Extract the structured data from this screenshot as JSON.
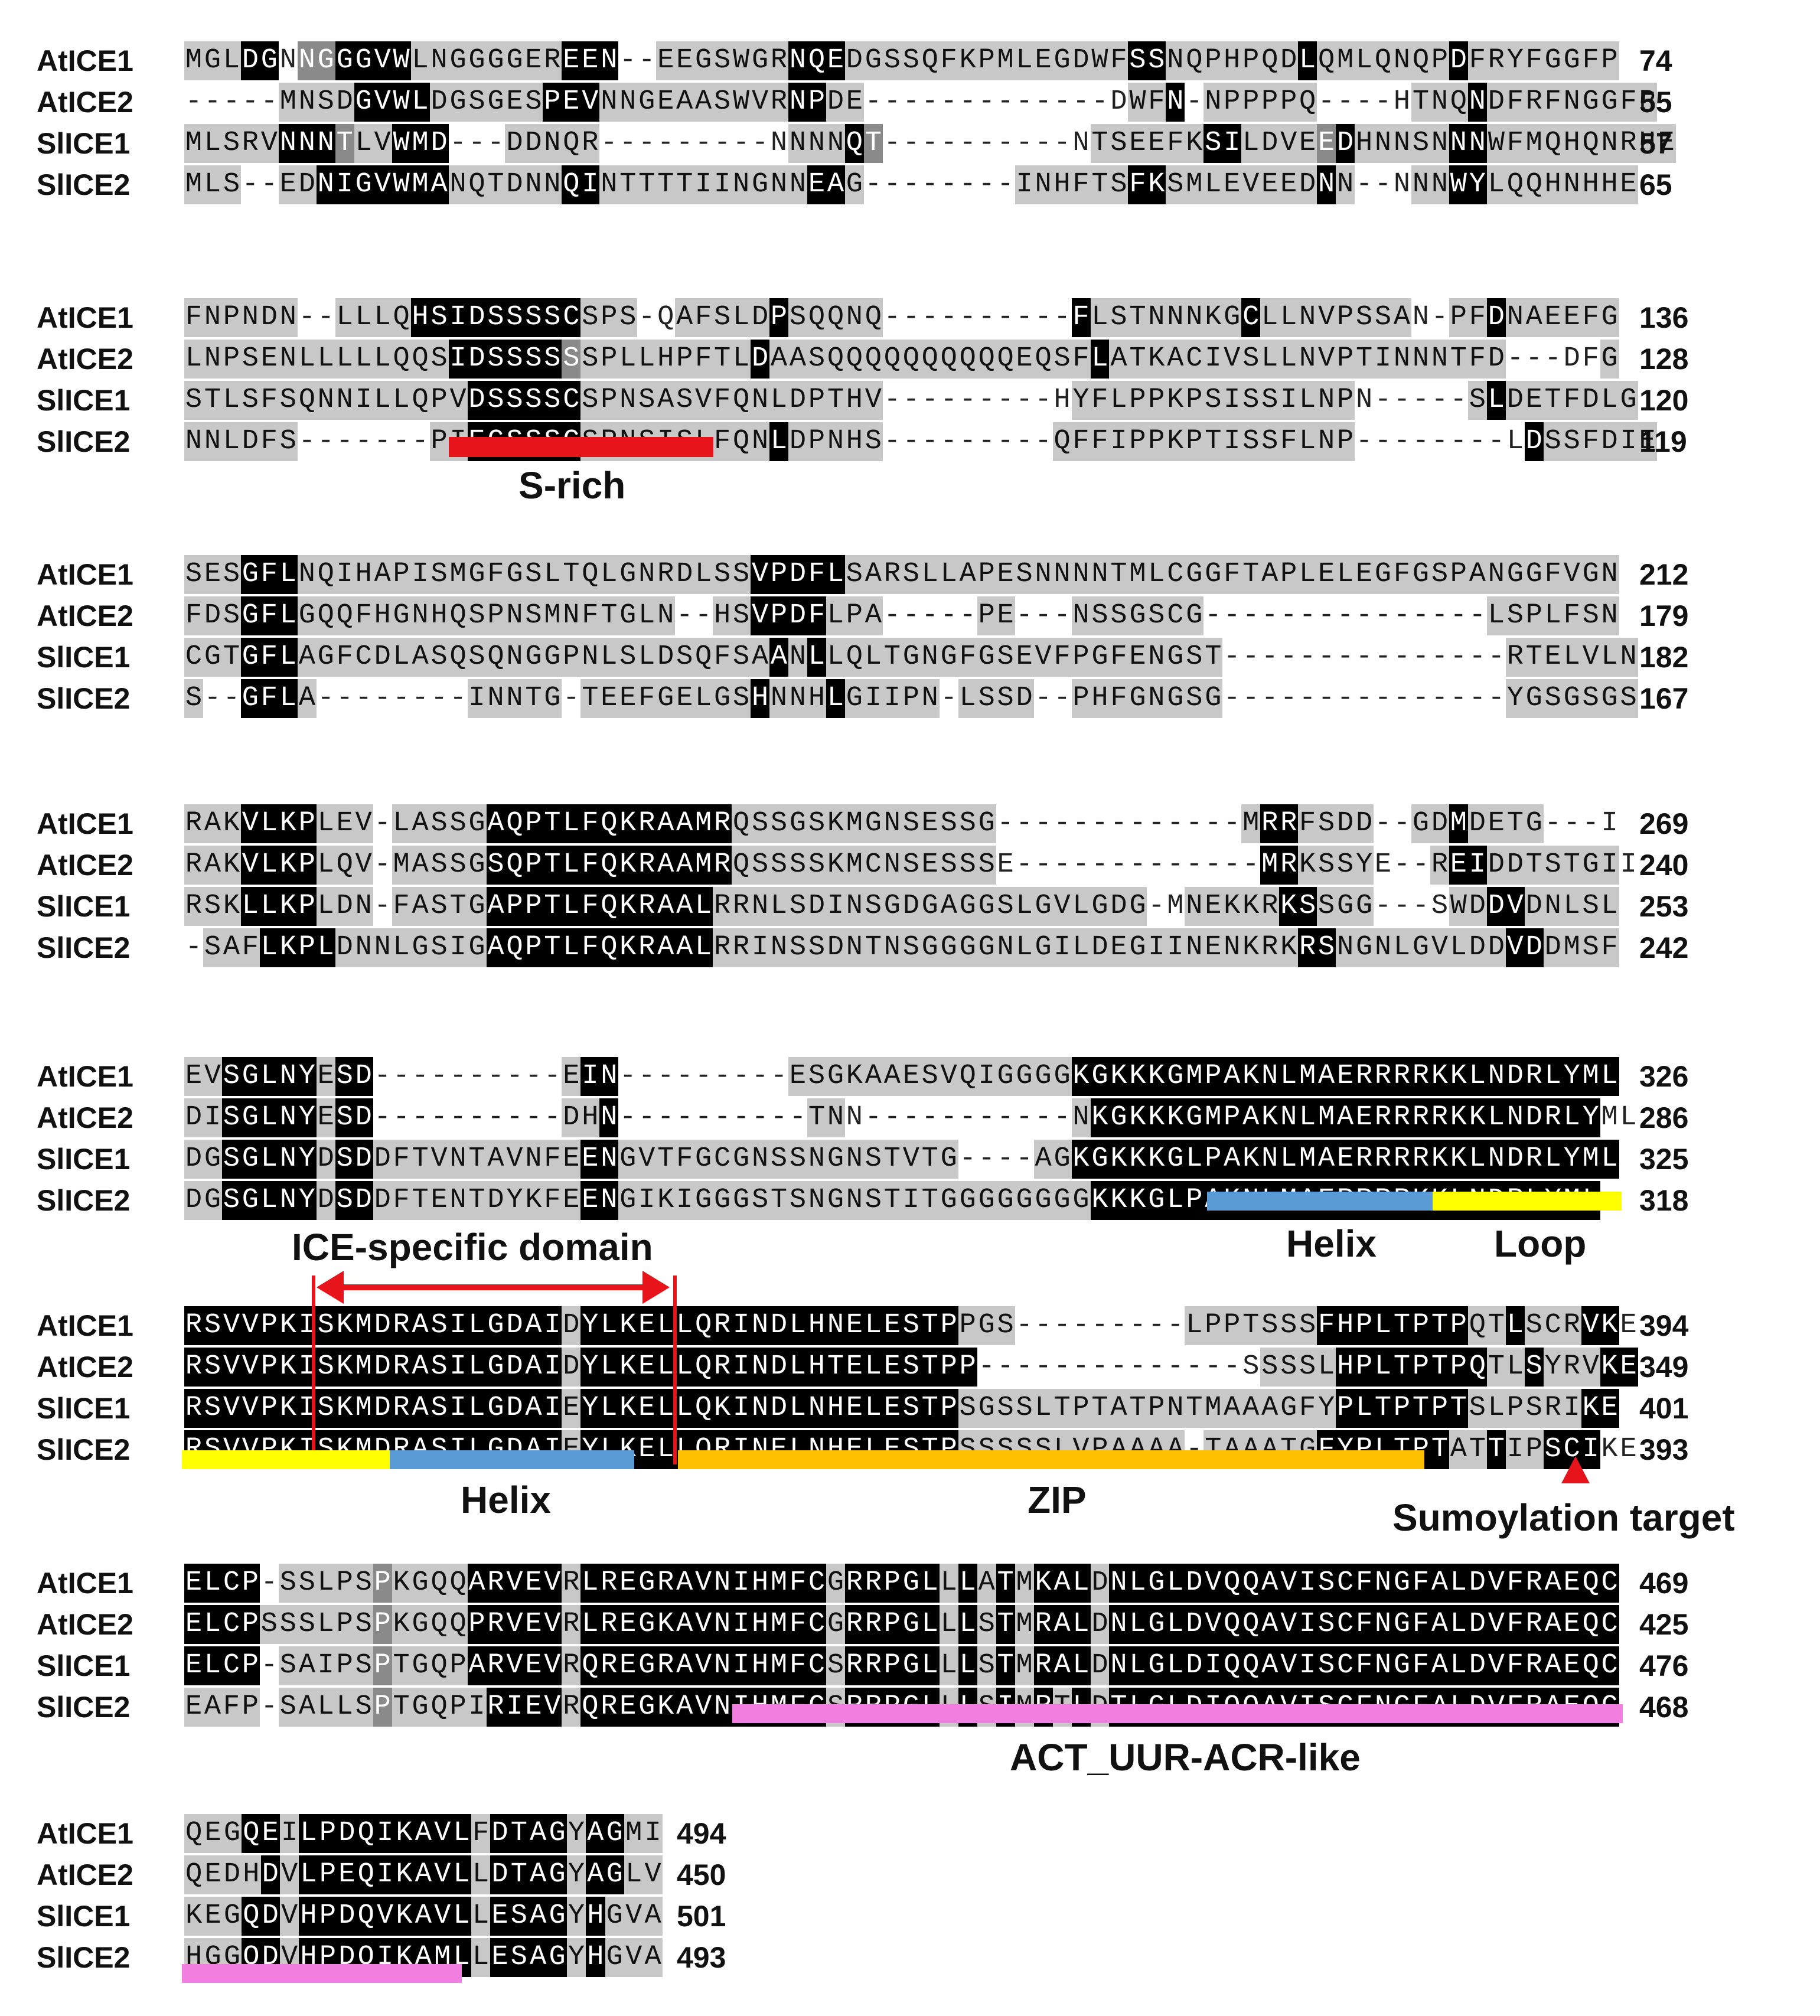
{
  "colors": {
    "identical": "#000000",
    "strong": "#8a8a8a",
    "weak": "#c8c8c8",
    "s_rich": "#e8141b",
    "helix": "#5b9bd5",
    "loop": "#ffff00",
    "zip": "#ffc000",
    "act": "#f27ee0",
    "marker": "#e8141b"
  },
  "blocks": [
    {
      "rows": [
        {
          "name": "AtICE1",
          "seq": "MGLDGNNGGGVWLNGGGGEREEN--EEGSWGRNQEDGSSQFKPMLEGDWFSSNQPHPQDLQMLQNQPDFRYFGGFP",
          "shade": "1113302233331111111133311111111133311111111111111133111111131111111311111111",
          "end": "74"
        },
        {
          "name": "AtICE2",
          "seq": "-----MNSDGVWLDGSGESPEVNNGEAASWVRNPDE-------------DWFN-NPPPPQ----HTNQNDFRFNGGFP",
          "shade": "0000011113333111111333111111111133111000000000000011331111111000011131111111111",
          "end": "55"
        },
        {
          "name": "SlICE1",
          "seq": "MLSRVNNNTLVWMD---DDNQR---------NNNNQT----------NTSEEFKSILDVEEDHNNSNNNWFMQHQNRHE",
          "shade": "11111333211333000111111000000000111321000000000011111133111123111113311111111111",
          "end": "57"
        },
        {
          "name": "SlICE2",
          "seq": "MLS--EDNIGVWMANQTDNNQINTTTTIINGNNEAG--------INHFTSFKSMLEVEEDNN--NNNWYLQQHNHHE",
          "shade": "111001133333331111113311111111111331000000001111113311111111311001133111111111",
          "end": "65"
        }
      ]
    },
    {
      "rows": [
        {
          "name": "AtICE1",
          "seq": "FNPNDN--LLLQHSIDSSSSCSPS-QAFSLDPSQQNQ----------FLSTNNNKGCLLNVPSSAN-PFDNAEEFG",
          "shade": "1111110011113333333331111011111311111000000000031111111131111111101113111111",
          "end": "136"
        },
        {
          "name": "AtICE2",
          "seq": "LNPSENLLLLLQQSIDSSSSSSPLLHPFTLDAASQQQQQQQQQQEQSFLATKACIVSLLNVPTINNNTFD---DFG",
          "shade": "111111111111113333332111111111311111111111111111311111111111111111111113000111",
          "end": "128"
        },
        {
          "name": "SlICE1",
          "seq": "STLSFSQNNILLQPVDSSSSCSPNSASVFQNLDPTHV---------HYFLPPKPSISSILNPN-----SLDETFDLG",
          "shade": "11111111111111133333311111111111111111000000000111111111111111000001131111111",
          "end": "120"
        },
        {
          "name": "SlICE2",
          "seq": "NNLDFS-------PIEGSSSCSPNSISLFQNLDPNHS---------QFFIPPKPTISSFLNP--------LDSSFDIE",
          "shade": "1111110000000113333331111111111311111000000000111111111111111110000000031111111",
          "end": "119"
        }
      ]
    },
    {
      "rows": [
        {
          "name": "AtICE1",
          "seq": "SESGFLNQIHAPISMGFGSLTQLGNRDLSSVPDFLSARSLLAPESNNNNTMLCGGFTAPLELEGFGSPANGGFVGN",
          "shade": "1113331111111111111111111111113333311111111111111111111111111111111111111111",
          "end": "212"
        },
        {
          "name": "AtICE2",
          "seq": "FDSGFLGQQFHGNHQSPNSMNFTGLN--HSVPDFLPA-----PE---NSSGSCG---------------LSPLFSN",
          "shade": "1113331111111111111111111100113333111000001100011111110000000000000001111111",
          "end": "179"
        },
        {
          "name": "SlICE1",
          "seq": "CGTGFLAGFCDLASQSQNGGPNLSLDSQFSAANLLQLTGNGFGSEVFPGFENGST---------------RTELVLN",
          "shade": "111333111111111111111111111111131311111111111111111111100000000000000011111111",
          "end": "182"
        },
        {
          "name": "SlICE2",
          "seq": "S--GFLA--------INNTG-TEEFGELGSHNNHLGIIPN-LSSD--PHFGNGSG---------------YGSGSGS",
          "shade": "1003331000000001111101111111113111311111011110011111111000000000000000111111111",
          "end": "167"
        }
      ]
    },
    {
      "rows": [
        {
          "name": "AtICE1",
          "seq": "RAKVLKPLEV-LASSGAQPTLFQKRAAMRQSSGSKMGNSESSG-------------MRRFSDD--GDMDETG---I",
          "shade": "111333311101111133333333333331111111111111100000000000001331111001131111100011",
          "end": "269"
        },
        {
          "name": "AtICE2",
          "seq": "RAKVLKPLQV-MASSGSQPTLFQKRAAMRQSSSSKMCNSESSSE-------------MRKSSYE--REIDDTSTGII",
          "shade": "1113333111011111333333333333311111111111111000000000000013311110011331111111",
          "end": "240"
        },
        {
          "name": "SlICE1",
          "seq": "RSKLLKPLDN-FASTGAPPTLFQKRAALRRNLSDINSGDGAGGSLGVLGDG-MNEKKRKSSGG---SWDDVDNLSL",
          "shade": "11133331110111113333333333331111111111111111111111110111113311110001133111111",
          "end": "253"
        },
        {
          "name": "SlICE2",
          "seq": "-SAFLKPLDNNLGSIGAQPTLFQKRAALRRINSSDNTNSGGGGNLGILDEGIINENKRKRSNGNLGVLDDVDDMSF",
          "shade": "01113333111111113333333333331111111111111111111111111111111331111111113311111",
          "end": "242"
        }
      ]
    },
    {
      "rows": [
        {
          "name": "AtICE1",
          "seq": "EVSGLNYESD----------EIN---------ESGKAAESVQIGGGGKGKKKGMPAKNLMAERRRRKKLNDRLYML",
          "shade": "1133333133000000000013300000000011111111111111133333333333333333333333333333",
          "end": "326"
        },
        {
          "name": "AtICE2",
          "seq": "DISGLNYESD----------DHN----------TNN-----------NKGKKKGMPAKNLMAERRRRKKLNDRLYML",
          "shade": "113333313300000000001130000000000110000000000011333333333333333333333333333",
          "end": "286"
        },
        {
          "name": "SlICE1",
          "seq": "DGSGLNYDSDDFTVNTAVNFEENGVTFGCGNSSNGNSTVTG----AGKGKKKGLPAKNLMAERRRRKKLNDRLYML",
          "shade": "1133333133111111111113311111111111111111100001133333333333333333333333333333",
          "end": "325"
        },
        {
          "name": "SlICE2",
          "seq": "DGSGLNYDSDDFTENTDYKFEENGIKIGGGSTSNGNSTITGGGGGGGGKKKGLPAKNLMAERRRRKKLNDRLYML",
          "shade": "1133333133111111111113311111111111111111111111113333333333333333333333333333",
          "end": "318"
        }
      ]
    },
    {
      "rows": [
        {
          "name": "AtICE1",
          "seq": "RSVVPKISKMDRASILGDAIDYLKELLQRINDLHNELESTPPGS---------LPPTSSSFHPLTPTPQTLSCRVKE",
          "shade": "3333333333333333333313333333333333333333311100000000011111113333333311311133",
          "end": "394"
        },
        {
          "name": "AtICE2",
          "seq": "RSVVPKISKMDRASILGDAIDYLKELLQRINDLHTELESTPP--------------SSSSLHPLTPTPQTLSYRVKE",
          "shade": "33333333333333333333133333333333333333333310000000000000011113333333311311133",
          "end": "349"
        },
        {
          "name": "SlICE1",
          "seq": "RSVVPKISKMDRASILGDAIEYLKELLQKINDLNHELESTPSGSSLTPTATPNTMAAAGFYPLTPTPTSLPSRIKE",
          "shade": "33333333333333333333133333333333333333333111111111111111111113333333111111333",
          "end": "401"
        },
        {
          "name": "SlICE2",
          "seq": "RSVVPKISKMDRASILGDAIEYLKELLQRINELNHELESTPSSSSSLVPAAAA-TAAATGFYPLTPTATTIPSCIKE",
          "shade": "333333333333333333331333333333333333333331111111111110111111333333311311333",
          "end": "393"
        }
      ]
    },
    {
      "rows": [
        {
          "name": "AtICE1",
          "seq": "ELCP-SSLPSPKGQQARVEVRLREGRAVNIHMFCGRRPGLLLATMKALDNLGLDVQQAVISCFNGFALDVFRAEQC",
          "shade": "3333011111211113333313333333333333133333131313331333333333333333333333333333",
          "end": "469"
        },
        {
          "name": "AtICE2",
          "seq": "ELCPSSSLPSPKGQQPRVEVRLREGKAVNIHMFCGRRPGLLLSTMRALDNLGLDVQQAVISCFNGFALDVFRAEQC",
          "shade": "3333111111211113333313333333333333133333131313331333333333333333333333333333",
          "end": "425"
        },
        {
          "name": "SlICE1",
          "seq": "ELCP-SAIPSPTGQPARVEVRQREGRAVNIHMFCSRRPGLLLSTMRALDNLGLDIQQAVISCFNGFALDVFRAEQC",
          "shade": "3333011111211113333313333333333333133333131313331333333333333333333333333333",
          "end": "476"
        },
        {
          "name": "SlICE2",
          "seq": "EAFP-SALLSPTGQPIRIEVRQREGKAVNIHMFCSRRPGLLLSIMRTLDTLGLDIQQAVISCFNGFALDVFRAEQC",
          "shade": "1111011111211111333313333333333333133333131313131333333333333333333333333333",
          "end": "468"
        }
      ]
    },
    {
      "rows": [
        {
          "name": "AtICE1",
          "seq": "QEGQEILPDQIKAVLFDTAGYAGMI",
          "shade": "1113313333333331333313311",
          "end": "494"
        },
        {
          "name": "AtICE2",
          "seq": "QEDHDVLPEQIKAVLLDTAGYAGLV",
          "shade": "1111313333333331333313311",
          "end": "450"
        },
        {
          "name": "SlICE1",
          "seq": "KEGQDVHPDQVKAVLLESAGYHGVA",
          "shade": "1113313333333331333313111",
          "end": "501"
        },
        {
          "name": "SlICE2",
          "seq": "HGGQDVHPDQIKAMLLESAGYHGVA",
          "shade": "1113313333333331333313111",
          "end": "493"
        }
      ]
    }
  ],
  "annotations": {
    "s_rich": "S-rich",
    "ice_domain": "ICE-specific domain",
    "helix_1": "Helix",
    "loop": "Loop",
    "helix_2": "Helix",
    "zip": "ZIP",
    "sumo": "Sumoylation target",
    "act": "ACT_UUR-ACR-like"
  }
}
